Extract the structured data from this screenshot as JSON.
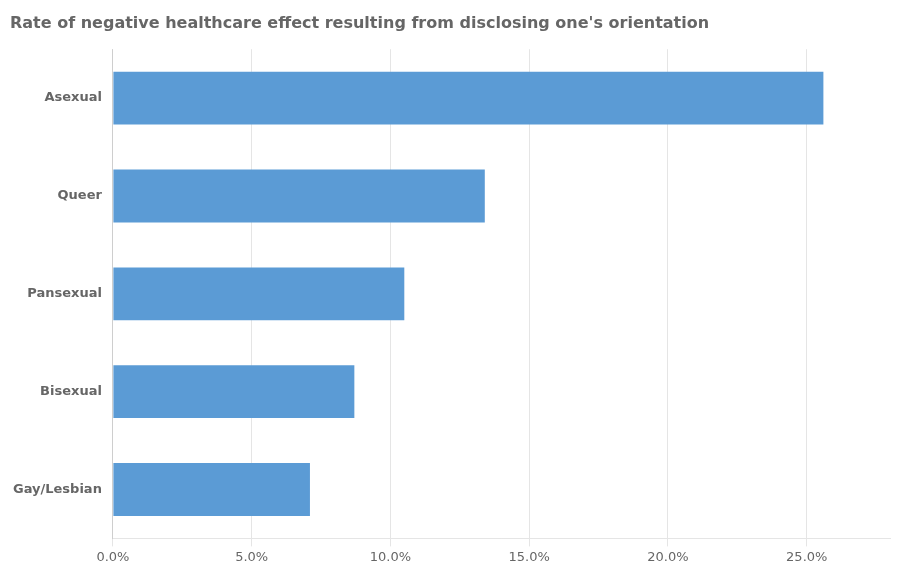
{
  "chart_data": {
    "type": "bar",
    "orientation": "horizontal",
    "title": "Rate of negative healthcare effect resulting from disclosing one's orientation",
    "categories": [
      "Gay/Lesbian",
      "Bisexual",
      "Pansexual",
      "Queer",
      "Asexual"
    ],
    "values": [
      7.1,
      8.7,
      10.5,
      13.4,
      25.6
    ],
    "color": "#5b9bd5",
    "xlim": [
      0,
      28
    ],
    "xticks": [
      {
        "value": 0,
        "label": "0.0%"
      },
      {
        "value": 5,
        "label": "5.0%"
      },
      {
        "value": 10,
        "label": "10.0%"
      },
      {
        "value": 15,
        "label": "15.0%"
      },
      {
        "value": 20,
        "label": "20.0%"
      },
      {
        "value": 25,
        "label": "25.0%"
      }
    ],
    "grid": true
  }
}
